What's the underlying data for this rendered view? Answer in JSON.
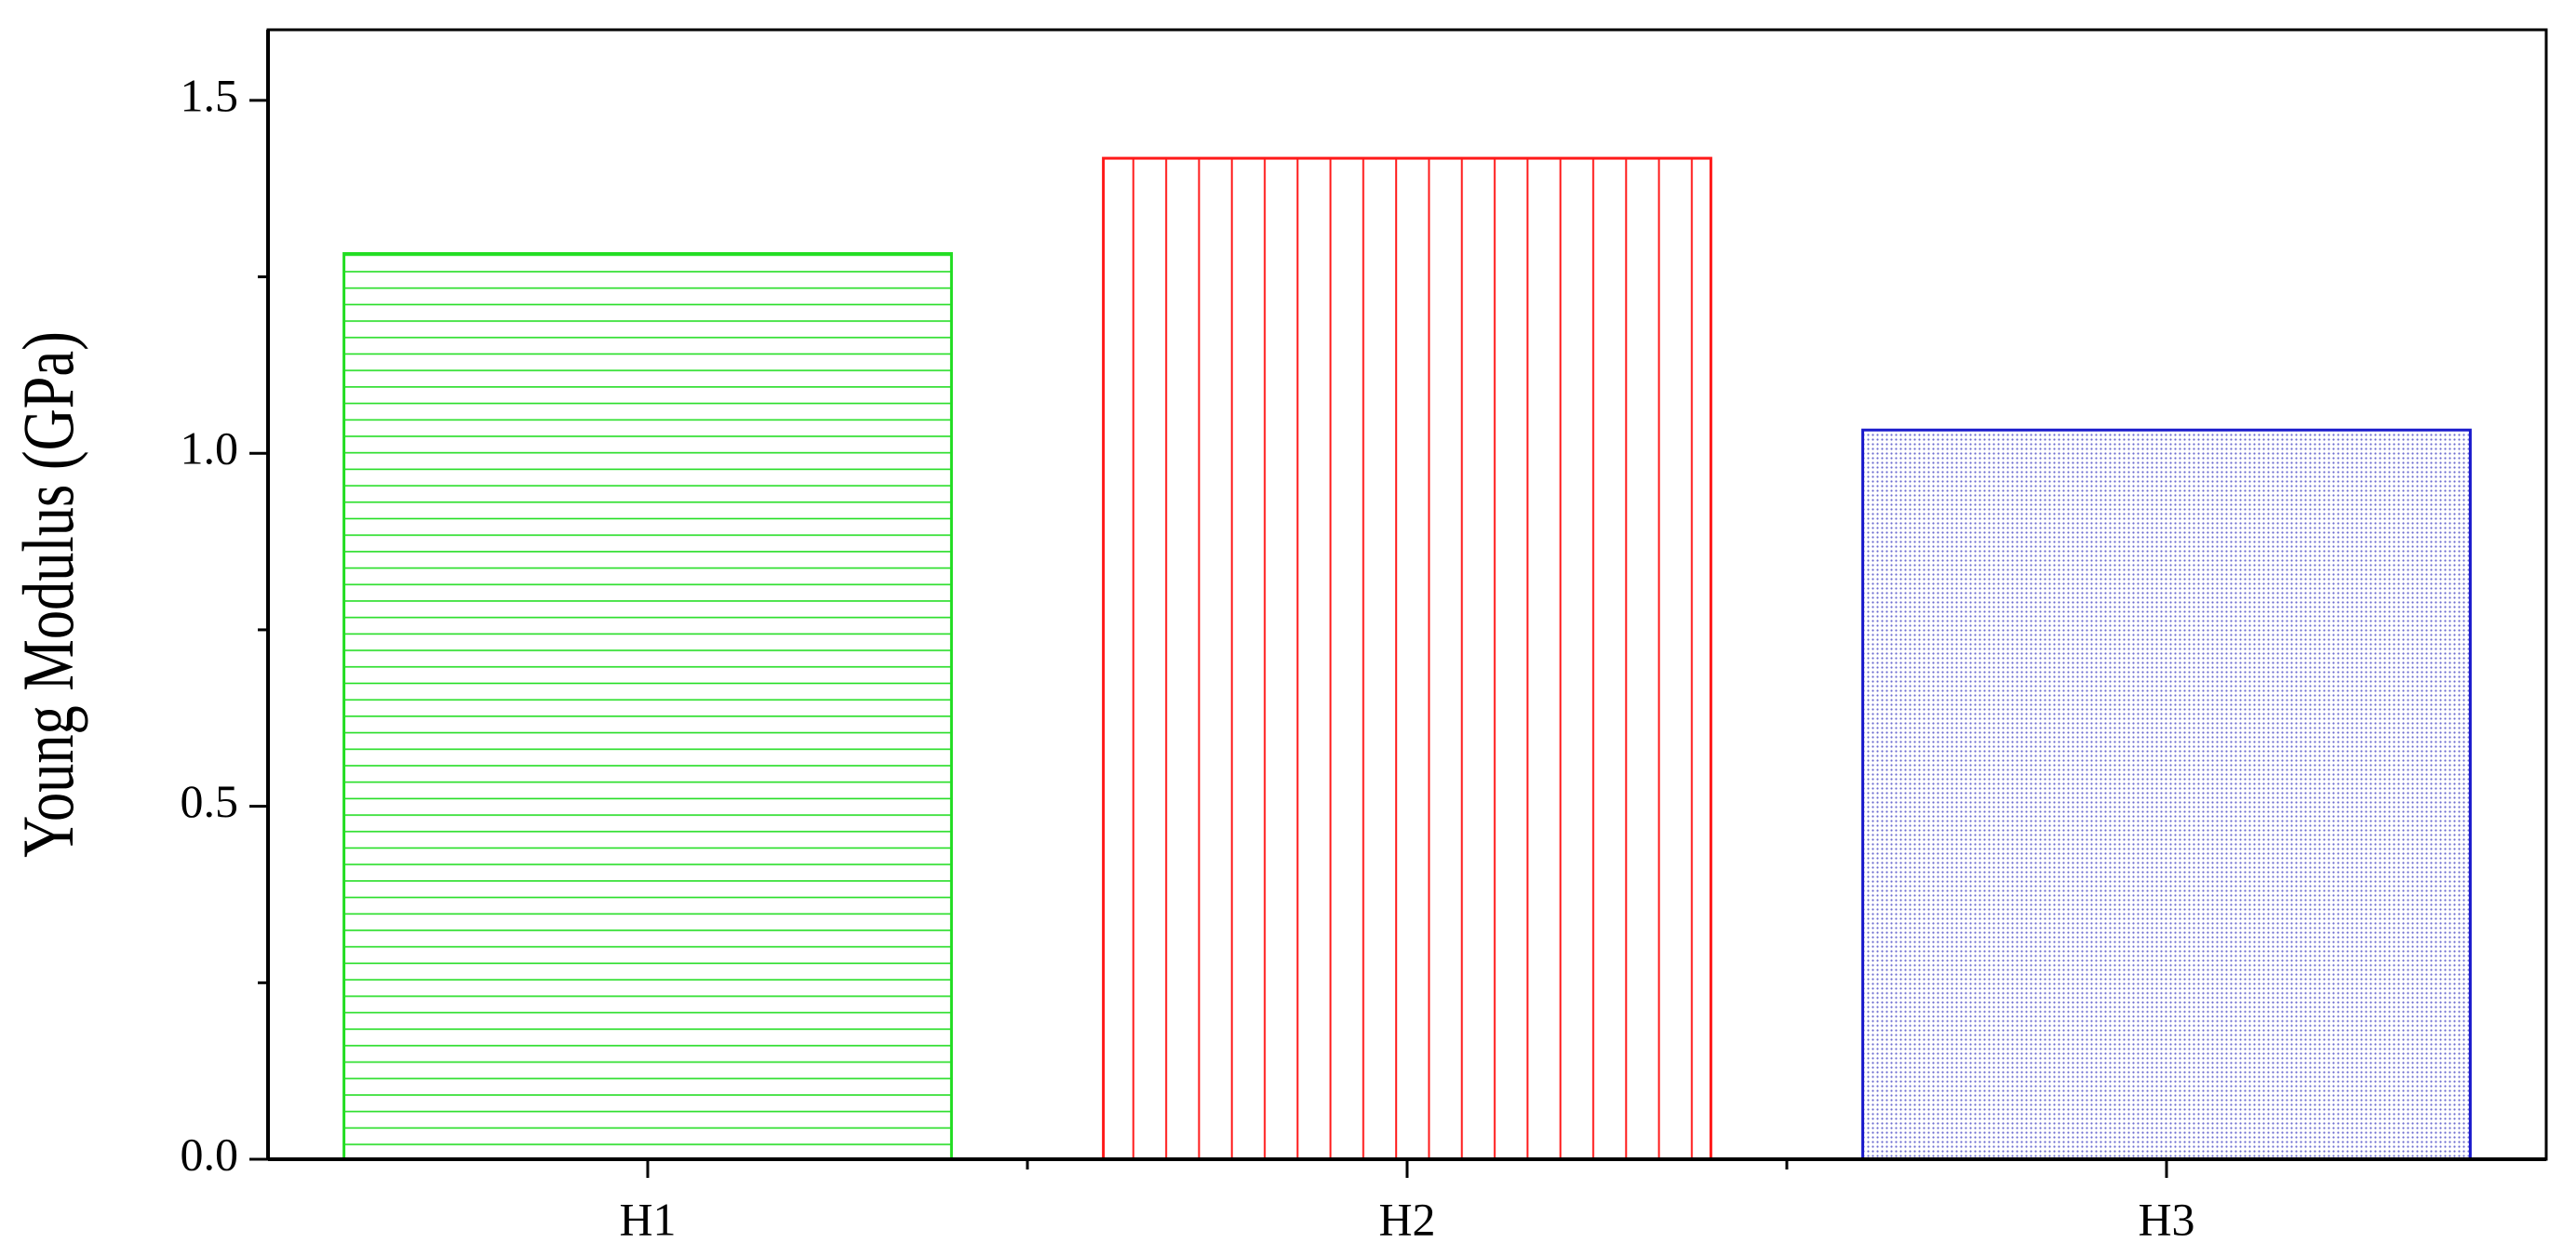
{
  "chart_data": {
    "type": "bar",
    "y_label": "Young Modulus (GPa)",
    "categories": [
      "H1",
      "H2",
      "H3"
    ],
    "values": [
      1.283,
      1.418,
      1.033
    ],
    "colors": [
      "#22dd22",
      "#ff1a1a",
      "#1a1acc"
    ],
    "patterns": [
      "horizontal",
      "vertical",
      "dots"
    ],
    "ylim": [
      0,
      1.6
    ],
    "yticks": [
      {
        "value": 0,
        "label": "0.0"
      },
      0.5,
      {
        "value": 1,
        "label": "1.0"
      },
      1.5
    ],
    "yminorticks": [
      0.25,
      0.75,
      1.25
    ]
  }
}
